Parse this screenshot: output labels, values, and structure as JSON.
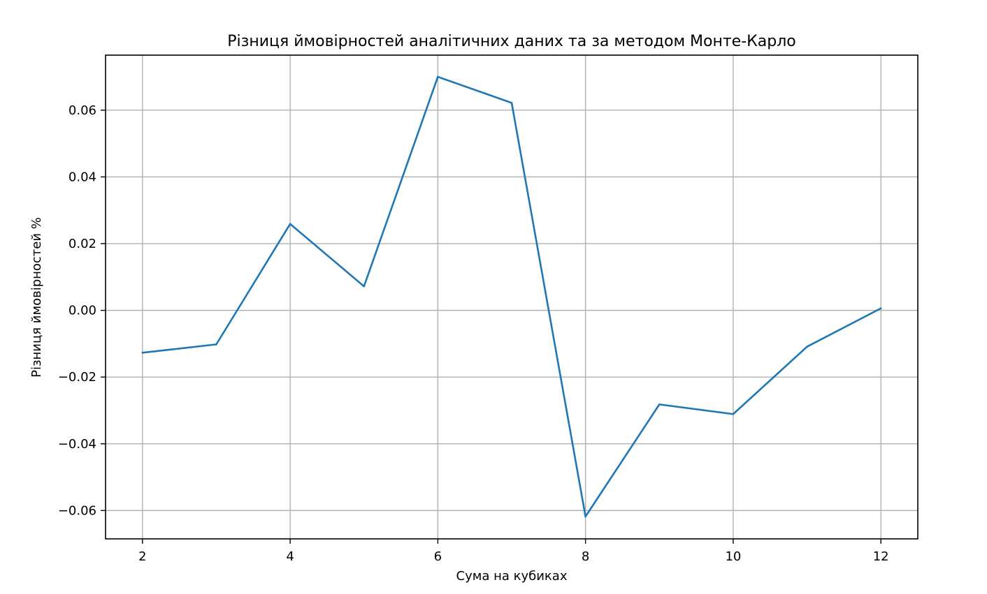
{
  "chart_data": {
    "type": "line",
    "title": "Різниця ймовірностей аналітичних даних та за методом Монте-Карло",
    "xlabel": "Сума на кубиках",
    "ylabel": "Різниця ймовірностей %",
    "x": [
      2,
      3,
      4,
      5,
      6,
      7,
      8,
      9,
      10,
      11,
      12
    ],
    "series": [
      {
        "values": [
          -0.0127,
          -0.0102,
          0.0259,
          0.0072,
          0.07,
          0.0622,
          -0.0618,
          -0.0282,
          -0.0311,
          -0.0109,
          0.0006
        ],
        "color": "#1f77b4"
      }
    ],
    "xlim": [
      1.5,
      12.5
    ],
    "ylim": [
      -0.0685,
      0.0765
    ],
    "xticks": [
      2,
      4,
      6,
      8,
      10,
      12
    ],
    "xtick_labels": [
      "2",
      "4",
      "6",
      "8",
      "10",
      "12"
    ],
    "yticks": [
      -0.06,
      -0.04,
      -0.02,
      0.0,
      0.02,
      0.04,
      0.06
    ],
    "ytick_labels": [
      "−0.06",
      "−0.04",
      "−0.02",
      "0.00",
      "0.02",
      "0.04",
      "0.06"
    ],
    "grid": true,
    "legend": "none"
  }
}
